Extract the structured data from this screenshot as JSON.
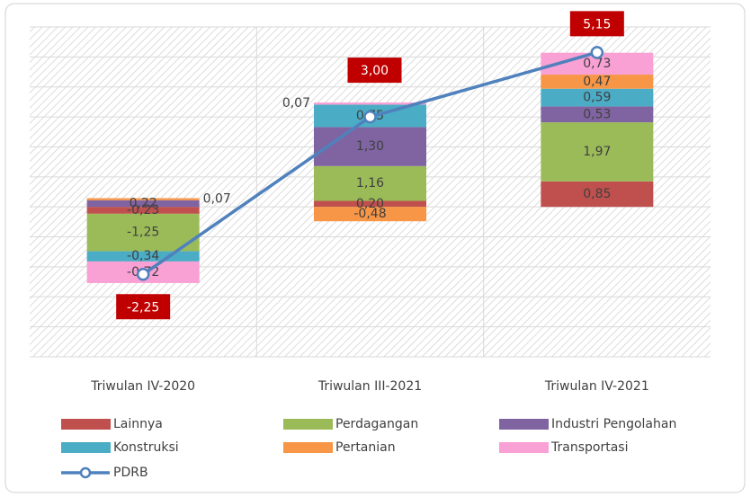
{
  "chart_data": {
    "type": "stacked_bar_line",
    "categories": [
      "Triwulan IV-2020",
      "Triwulan III-2021",
      "Triwulan IV-2021"
    ],
    "ylim": [
      -5,
      6
    ],
    "yticks": [
      -5,
      -4,
      -3,
      -2,
      -1,
      0,
      1,
      2,
      3,
      4,
      5,
      6
    ],
    "grid": true,
    "legend": "bottom",
    "series": [
      {
        "name": "Lainnya",
        "color": "#c0504d",
        "values": [
          -0.23,
          0.2,
          0.85
        ],
        "value_labels": [
          "-0,23",
          "0,20",
          "0,85"
        ]
      },
      {
        "name": "Perdagangan",
        "color": "#9bbb59",
        "values": [
          -1.25,
          1.16,
          1.97
        ],
        "value_labels": [
          "-1,25",
          "1,16",
          "1,97"
        ]
      },
      {
        "name": "Industri Pengolahan",
        "color": "#8064a2",
        "values": [
          0.22,
          1.3,
          0.53
        ],
        "value_labels": [
          "0,22",
          "1,30",
          "0,53"
        ]
      },
      {
        "name": "Konstruksi",
        "color": "#4bacc6",
        "values": [
          -0.34,
          0.75,
          0.59
        ],
        "value_labels": [
          "-0,34",
          "0,75",
          "0,59"
        ]
      },
      {
        "name": "Pertanian",
        "color": "#f79646",
        "values": [
          0.07,
          -0.48,
          0.47
        ],
        "value_labels": [
          "0,07",
          "-0,48",
          "0,47"
        ]
      },
      {
        "name": "Transportasi",
        "color": "#f9a0d4",
        "values": [
          -0.72,
          0.07,
          0.73
        ],
        "value_labels": [
          "-0,72",
          "0,07",
          "0,73"
        ]
      },
      {
        "name": "PDRB",
        "type": "line",
        "color": "#4f81bd",
        "label_color": "#c00000",
        "values": [
          -2.25,
          3.0,
          5.15
        ],
        "value_labels": [
          "-2,25",
          "3,00",
          "5,15"
        ]
      }
    ]
  }
}
